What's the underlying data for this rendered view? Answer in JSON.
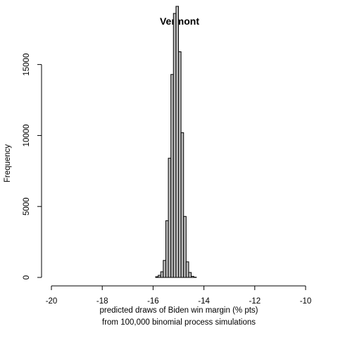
{
  "chart_data": {
    "type": "bar",
    "title": "Vermont",
    "xlabel_line1": "predicted draws of Biden win margin (% pts)",
    "xlabel_line2": "from 100,000 binomial process simulations",
    "ylabel": "Frequency",
    "xlim": [
      -20,
      -10
    ],
    "ylim": [
      0,
      19000
    ],
    "x_ticks": [
      -20,
      -18,
      -16,
      -14,
      -12,
      -10
    ],
    "y_ticks": [
      0,
      5000,
      10000,
      15000
    ],
    "bin_width": 0.1,
    "bins": [
      {
        "x0": -15.9,
        "x1": -15.8,
        "count": 50
      },
      {
        "x0": -15.8,
        "x1": -15.7,
        "count": 150
      },
      {
        "x0": -15.7,
        "x1": -15.6,
        "count": 400
      },
      {
        "x0": -15.6,
        "x1": -15.5,
        "count": 1200
      },
      {
        "x0": -15.5,
        "x1": -15.4,
        "count": 4000
      },
      {
        "x0": -15.4,
        "x1": -15.3,
        "count": 8400
      },
      {
        "x0": -15.3,
        "x1": -15.2,
        "count": 14300
      },
      {
        "x0": -15.2,
        "x1": -15.1,
        "count": 18600
      },
      {
        "x0": -15.1,
        "x1": -15.0,
        "count": 19100
      },
      {
        "x0": -15.0,
        "x1": -14.9,
        "count": 15900
      },
      {
        "x0": -14.9,
        "x1": -14.8,
        "count": 10200
      },
      {
        "x0": -14.8,
        "x1": -14.7,
        "count": 4300
      },
      {
        "x0": -14.7,
        "x1": -14.6,
        "count": 1100
      },
      {
        "x0": -14.6,
        "x1": -14.5,
        "count": 350
      },
      {
        "x0": -14.5,
        "x1": -14.4,
        "count": 80
      },
      {
        "x0": -14.4,
        "x1": -14.3,
        "count": 20
      }
    ]
  }
}
